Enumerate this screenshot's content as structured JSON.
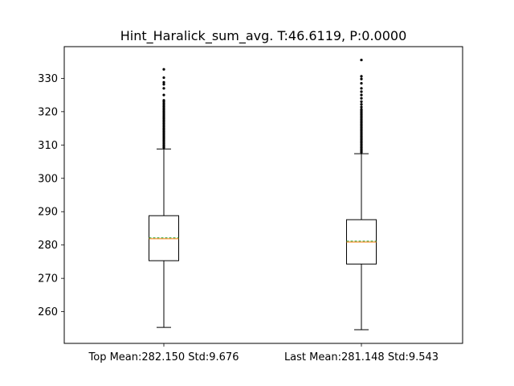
{
  "chart_data": {
    "type": "box",
    "title": "Hint_Haralick_sum_avg. T:46.6119, P:0.0000",
    "xlabel": "",
    "ylabel": "",
    "ylim": [
      250.5,
      339.5
    ],
    "yticks": [
      260,
      270,
      280,
      290,
      300,
      310,
      320,
      330
    ],
    "grid": false,
    "categories": [
      "Top Mean:282.150 Std:9.676",
      "Last Mean:281.148 Std:9.543"
    ],
    "boxes": [
      {
        "whisker_low": 255.3,
        "q1": 275.3,
        "median": 281.9,
        "mean": 282.15,
        "q3": 288.8,
        "whisker_high": 308.8,
        "outliers": [
          309.2,
          309.6,
          310.0,
          310.5,
          311.0,
          311.5,
          312.0,
          312.5,
          313.0,
          313.5,
          314.0,
          314.5,
          315.0,
          315.5,
          316.0,
          316.5,
          317.0,
          317.5,
          318.0,
          318.5,
          319.0,
          319.5,
          320.0,
          320.5,
          321.0,
          321.5,
          322.0,
          322.5,
          323.0,
          323.4,
          325.0,
          327.0,
          328.2,
          328.8,
          330.2,
          332.7
        ]
      },
      {
        "whisker_low": 254.6,
        "q1": 274.3,
        "median": 280.9,
        "mean": 281.148,
        "q3": 287.6,
        "whisker_high": 307.4,
        "outliers": [
          307.8,
          308.2,
          308.7,
          309.2,
          309.7,
          310.2,
          310.7,
          311.2,
          311.7,
          312.2,
          312.7,
          313.2,
          313.7,
          314.2,
          314.7,
          315.2,
          315.7,
          316.2,
          316.7,
          317.2,
          317.7,
          318.2,
          318.7,
          319.2,
          319.7,
          320.2,
          320.7,
          321.4,
          322.2,
          323.0,
          324.0,
          325.0,
          326.0,
          327.0,
          328.5,
          329.8,
          330.6,
          335.5
        ]
      }
    ],
    "colors": {
      "box": "#000000",
      "median": "#ff7f0e",
      "mean": "#2ca02c",
      "background": "#ffffff"
    }
  }
}
